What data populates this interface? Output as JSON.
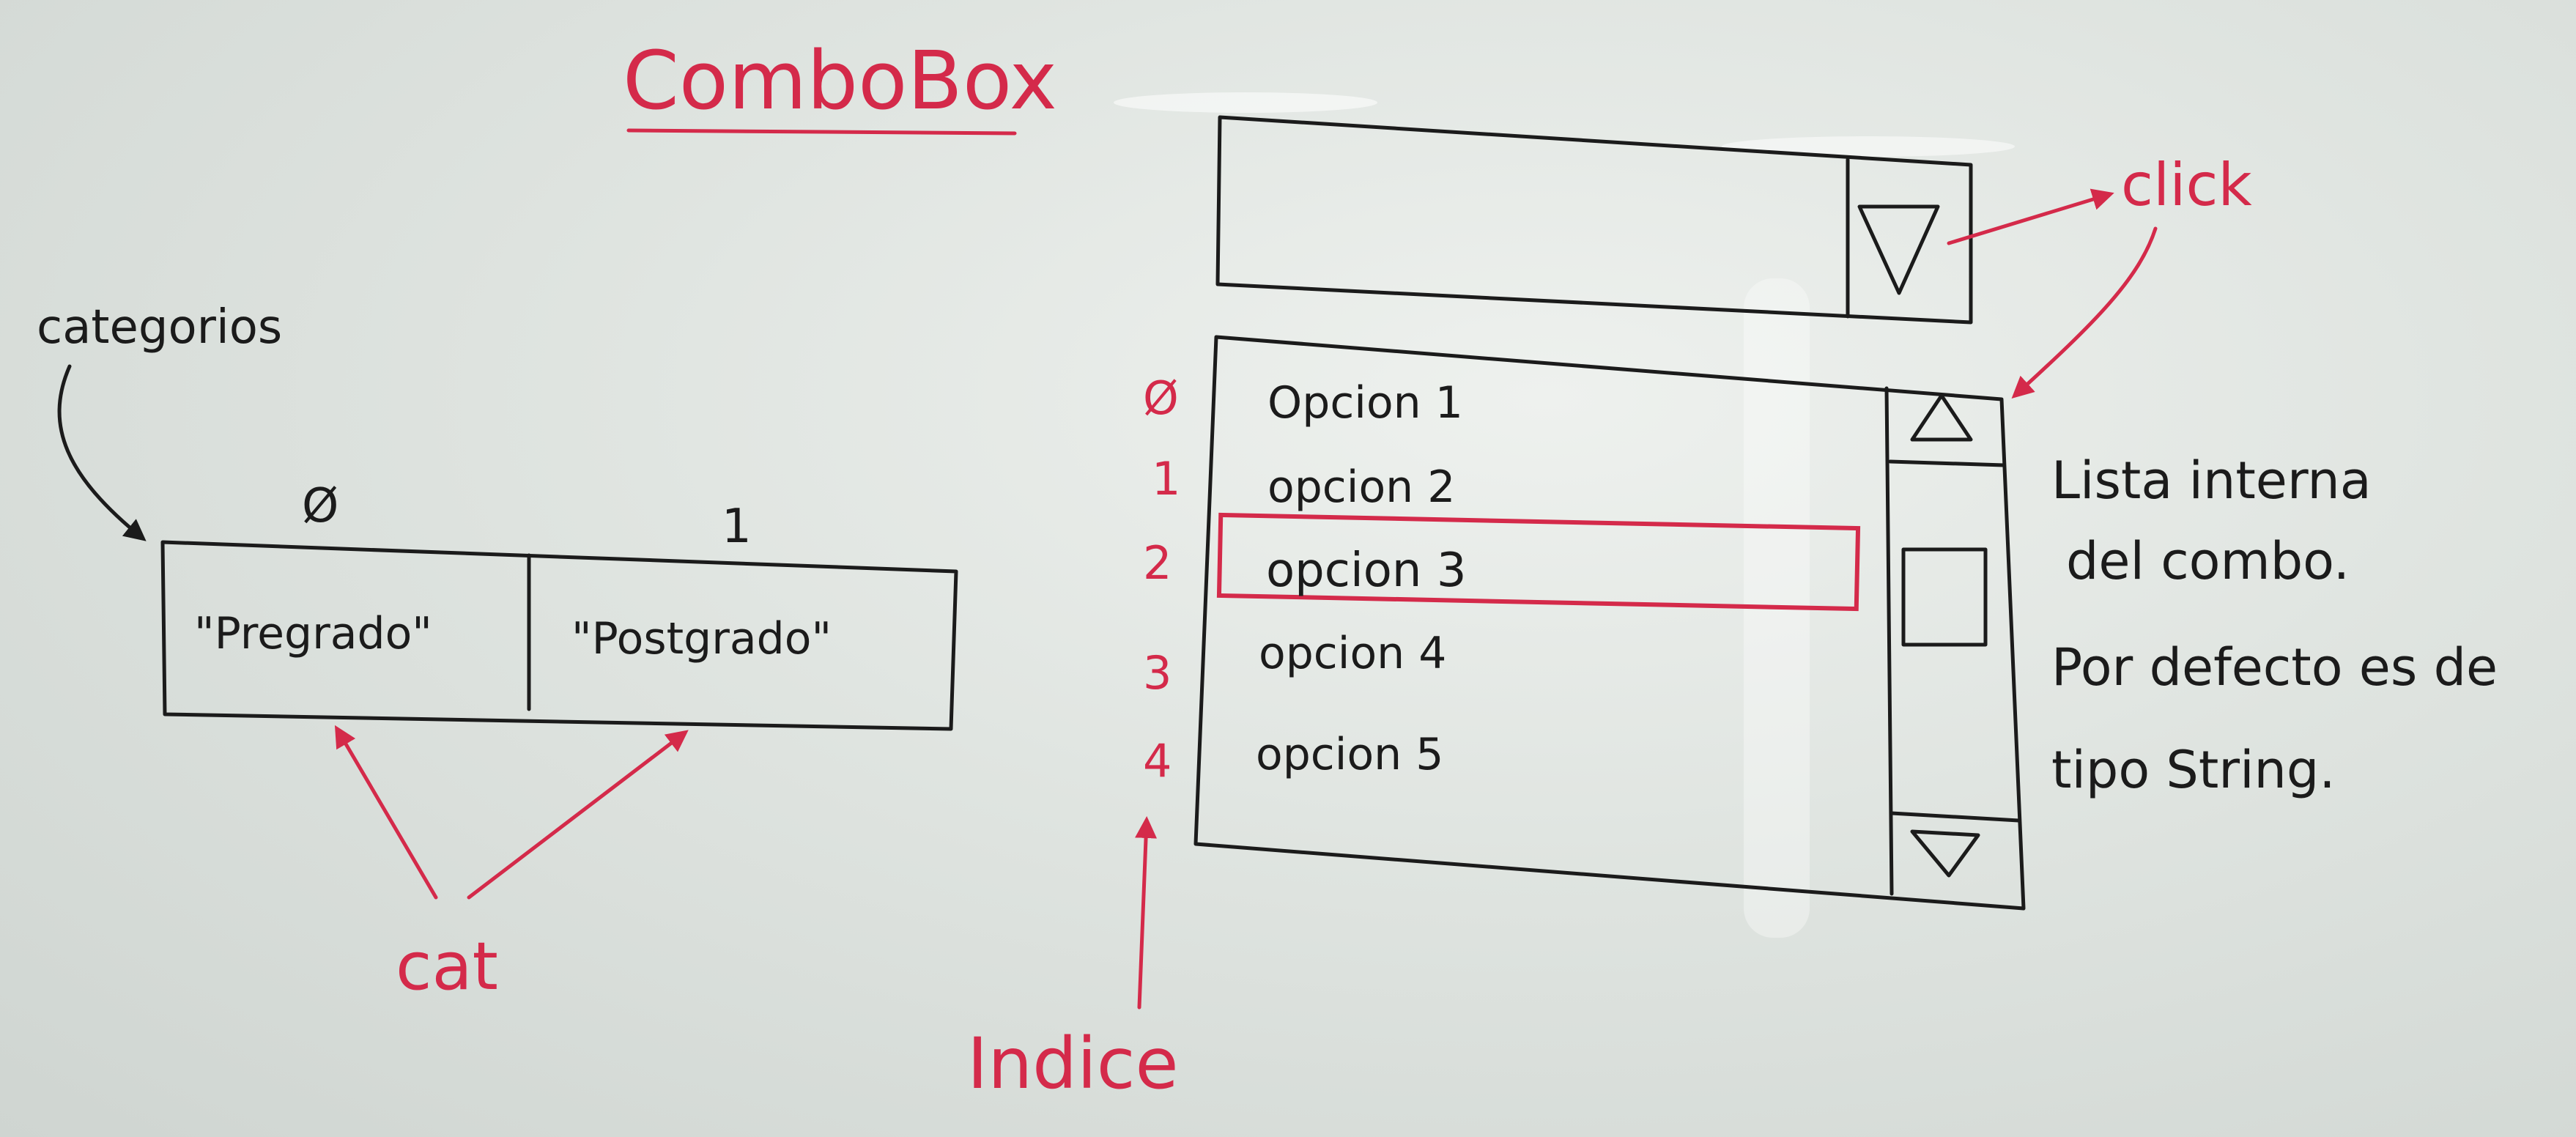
{
  "title": "ComboBox",
  "array_label": "categorios",
  "array_indices": [
    "Ø",
    "1"
  ],
  "array_cells": [
    "\"Pregrado\"",
    "\"Postgrado\""
  ],
  "cat_label": "cat",
  "click_label": "click",
  "list_indices": [
    "Ø",
    "1",
    "2",
    "3",
    "4"
  ],
  "list_options": [
    "Opcion 1",
    "opcion 2",
    "opcion 3",
    "opcion 4",
    "opcion 5"
  ],
  "selected_index": 2,
  "indice_label": "Indice",
  "note_lines": [
    "Lista interna",
    "del combo.",
    "Por defecto es de",
    "tipo String."
  ],
  "colors": {
    "marker_red": "#d42a4a",
    "marker_black": "#1b1b1b",
    "board": "#dfe4e0"
  }
}
